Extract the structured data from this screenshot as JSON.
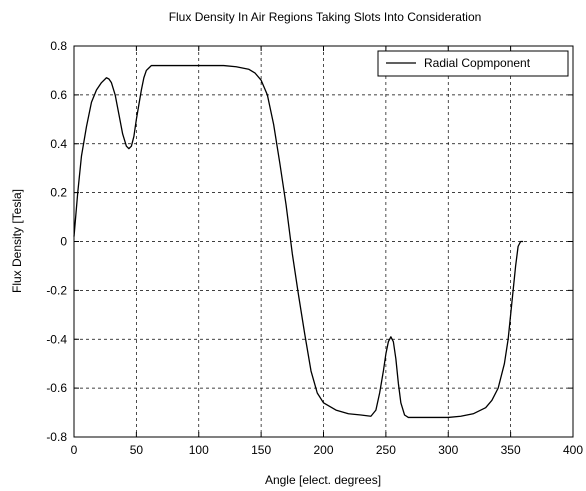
{
  "chart_data": {
    "type": "line",
    "title": "Flux Density In Air Regions Taking Slots Into Consideration",
    "xlabel": "Angle [elect. degrees]",
    "ylabel": "Flux Density [Tesla]",
    "xlim": [
      0,
      400
    ],
    "ylim": [
      -0.8,
      0.8
    ],
    "xticks": [
      0,
      50,
      100,
      150,
      200,
      250,
      300,
      350,
      400
    ],
    "yticks": [
      -0.8,
      -0.6,
      -0.4,
      -0.2,
      0,
      0.2,
      0.4,
      0.6,
      0.8
    ],
    "xtick_labels": [
      "0",
      "50",
      "100",
      "150",
      "200",
      "250",
      "300",
      "350",
      "400"
    ],
    "ytick_labels": [
      "-0.8",
      "-0.6",
      "-0.4",
      "-0.2",
      "0",
      "0.2",
      "0.4",
      "0.6",
      "0.8"
    ],
    "grid": true,
    "legend_position": "top-right",
    "series": [
      {
        "name": "Radial Copmponent",
        "color": "#000000",
        "x": [
          0,
          3,
          6,
          10,
          14,
          18,
          22,
          26,
          28,
          30,
          33,
          36,
          39,
          42,
          44,
          46,
          48,
          50,
          52,
          54,
          56,
          58,
          60,
          62,
          70,
          80,
          100,
          120,
          130,
          140,
          145,
          150,
          155,
          160,
          165,
          170,
          175,
          180,
          185,
          190,
          195,
          200,
          210,
          220,
          230,
          238,
          242,
          245,
          248,
          250,
          252,
          254,
          256,
          258,
          260,
          262,
          265,
          268,
          270,
          280,
          300,
          310,
          320,
          330,
          335,
          340,
          345,
          348,
          350,
          352,
          354,
          356,
          358,
          360
        ],
        "y": [
          0.02,
          0.2,
          0.35,
          0.47,
          0.57,
          0.62,
          0.65,
          0.67,
          0.665,
          0.65,
          0.6,
          0.52,
          0.44,
          0.39,
          0.38,
          0.39,
          0.43,
          0.5,
          0.56,
          0.62,
          0.67,
          0.7,
          0.71,
          0.72,
          0.72,
          0.72,
          0.72,
          0.72,
          0.715,
          0.705,
          0.69,
          0.66,
          0.6,
          0.48,
          0.32,
          0.15,
          -0.05,
          -0.22,
          -0.38,
          -0.53,
          -0.62,
          -0.66,
          -0.69,
          -0.705,
          -0.71,
          -0.715,
          -0.69,
          -0.62,
          -0.53,
          -0.46,
          -0.41,
          -0.39,
          -0.41,
          -0.48,
          -0.58,
          -0.66,
          -0.71,
          -0.72,
          -0.72,
          -0.72,
          -0.72,
          -0.715,
          -0.705,
          -0.68,
          -0.65,
          -0.6,
          -0.5,
          -0.4,
          -0.3,
          -0.2,
          -0.1,
          -0.02,
          0.0,
          0.0
        ]
      }
    ]
  }
}
